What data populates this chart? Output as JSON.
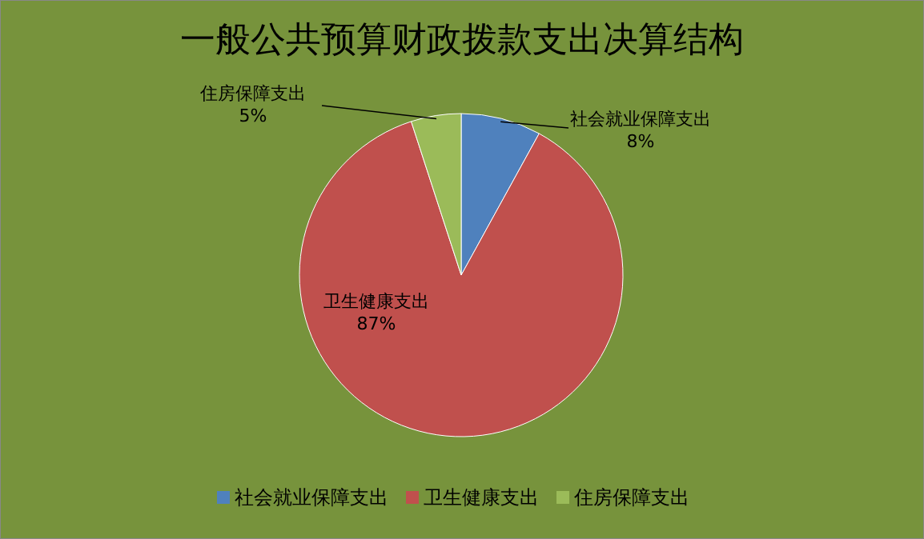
{
  "chart_data": {
    "type": "pie",
    "title": "一般公共预算财政拨款支出决算结构",
    "categories": [
      "社会就业保障支出",
      "卫生健康支出",
      "住房保障支出"
    ],
    "values": [
      8,
      87,
      5
    ],
    "value_labels": [
      "8%",
      "87%",
      "5%"
    ],
    "colors": [
      "#4f81bd",
      "#c0504d",
      "#9bbb59"
    ],
    "legend": "bottom"
  }
}
